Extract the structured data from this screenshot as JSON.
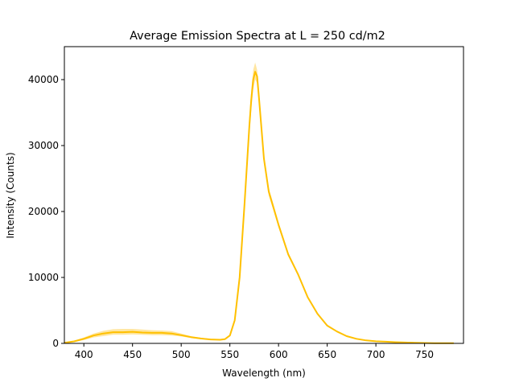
{
  "chart_data": {
    "type": "line",
    "title": "Average Emission Spectra at L = 250 cd/m2",
    "xlabel": "Wavelength (nm)",
    "ylabel": "Intensity (Counts)",
    "xlim": [
      380,
      790
    ],
    "ylim": [
      0,
      45000
    ],
    "xticks": [
      400,
      450,
      500,
      550,
      600,
      650,
      700,
      750
    ],
    "yticks": [
      0,
      10000,
      20000,
      30000,
      40000
    ],
    "grid": false,
    "legend": "none",
    "colors": {
      "line": "#ffc000",
      "band": "#ffe08a"
    },
    "series": [
      {
        "x": [
          380,
          390,
          400,
          410,
          420,
          430,
          440,
          450,
          460,
          470,
          480,
          490,
          500,
          510,
          520,
          530,
          540,
          545,
          550,
          555,
          560,
          565,
          570,
          572,
          574,
          576,
          578,
          580,
          585,
          590,
          595,
          600,
          610,
          620,
          630,
          640,
          650,
          660,
          670,
          680,
          690,
          700,
          710,
          720,
          730,
          740,
          750,
          760,
          770,
          780
        ],
        "values": [
          100,
          300,
          700,
          1200,
          1500,
          1700,
          1700,
          1750,
          1650,
          1600,
          1600,
          1500,
          1250,
          950,
          750,
          600,
          550,
          650,
          1200,
          3500,
          10000,
          21000,
          33000,
          37000,
          40000,
          41200,
          40500,
          37000,
          28000,
          23000,
          20500,
          18000,
          13500,
          10500,
          7000,
          4500,
          2700,
          1800,
          1100,
          700,
          450,
          320,
          250,
          180,
          130,
          90,
          60,
          40,
          30,
          20
        ],
        "band_low": [
          50,
          200,
          500,
          900,
          1100,
          1300,
          1300,
          1350,
          1300,
          1250,
          1250,
          1200,
          1050,
          800,
          650,
          520,
          480,
          580,
          1100,
          3300,
          9500,
          20000,
          31500,
          35500,
          38500,
          40000,
          39500,
          36000,
          27300,
          22400,
          20000,
          17600,
          13200,
          10300,
          6850,
          4400,
          2620,
          1740,
          1060,
          670,
          430,
          300,
          230,
          165,
          120,
          80,
          50,
          30,
          20,
          10
        ],
        "band_high": [
          160,
          420,
          900,
          1500,
          1900,
          2150,
          2200,
          2200,
          2100,
          2000,
          1950,
          1850,
          1500,
          1100,
          850,
          700,
          630,
          730,
          1320,
          3700,
          10500,
          22000,
          34500,
          38500,
          41500,
          42600,
          41500,
          38000,
          28700,
          23600,
          21000,
          18400,
          13800,
          10700,
          7150,
          4600,
          2780,
          1860,
          1140,
          730,
          470,
          340,
          270,
          195,
          140,
          100,
          70,
          50,
          40,
          30
        ]
      }
    ]
  }
}
